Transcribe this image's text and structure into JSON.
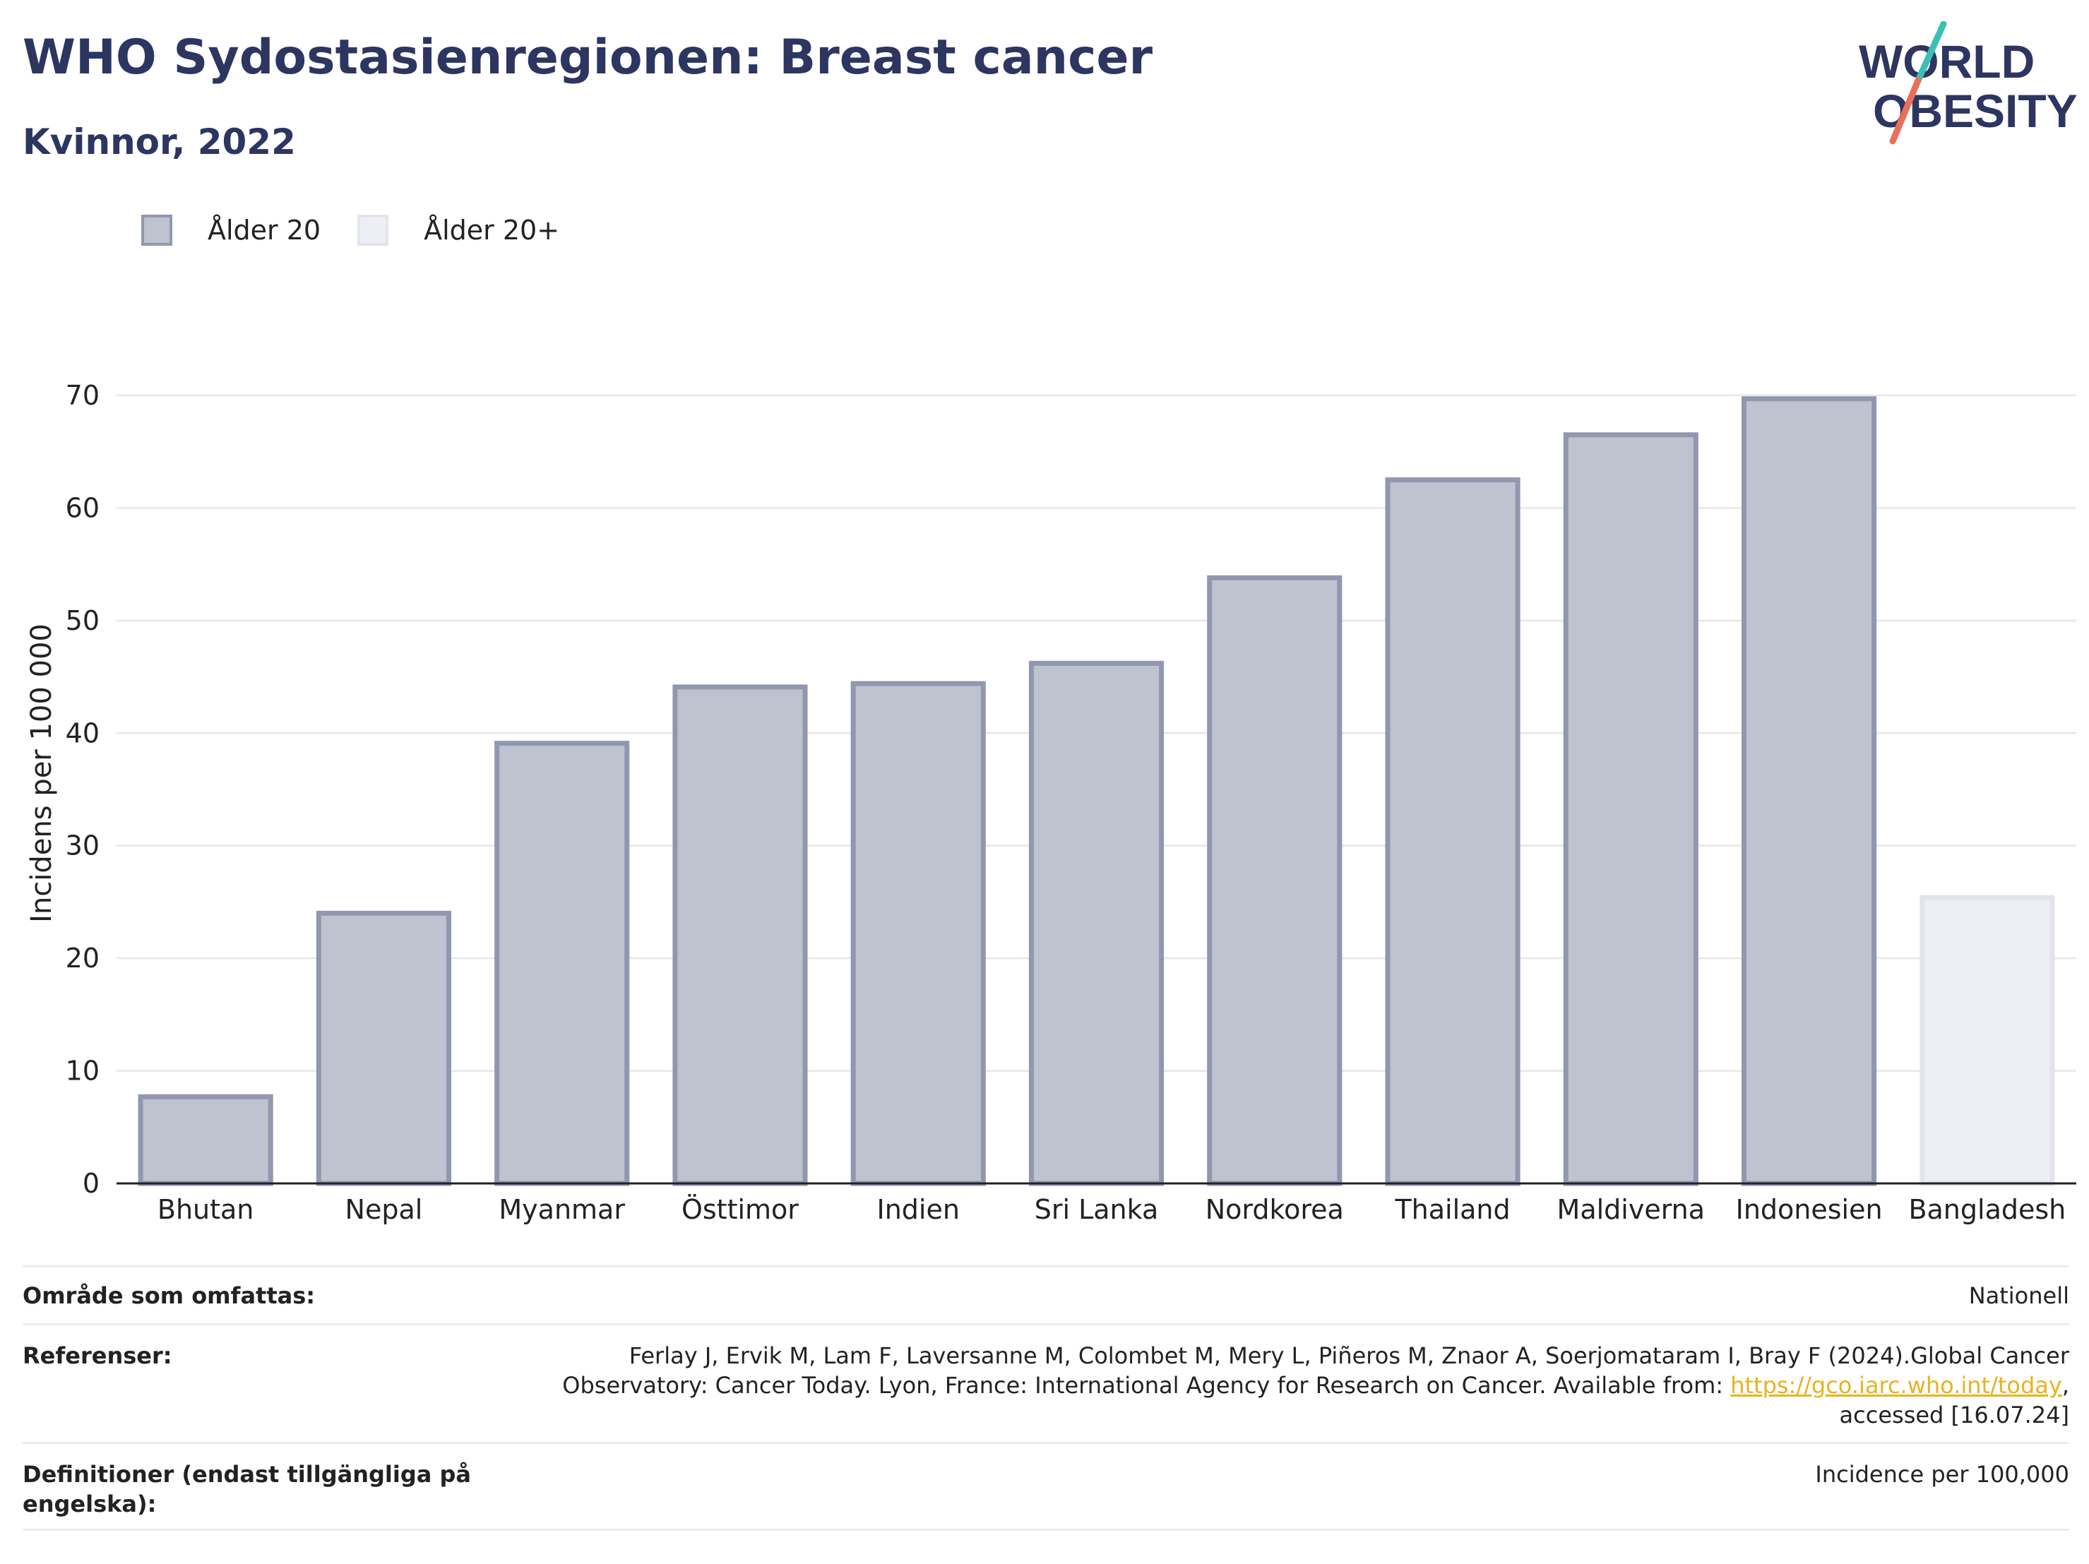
{
  "header": {
    "title": "WHO Sydostasienregionen: Breast cancer",
    "subtitle": "Kvinnor, 2022"
  },
  "logo": {
    "line1": "WORLD",
    "line2": "OBESITY",
    "colors": {
      "text": "#2d3561",
      "slash_top": "#3cbfb4",
      "slash_bottom": "#e8705a"
    }
  },
  "legend": [
    {
      "label": "Ålder 20",
      "color": "#bfc2cf"
    },
    {
      "label": "Ålder 20+",
      "color": "#eeeff4"
    }
  ],
  "chart_data": {
    "type": "bar",
    "title": "",
    "xlabel": "",
    "ylabel": "Incidens per 100 000",
    "ylim": [
      0,
      70
    ],
    "yticks": [
      0,
      10,
      20,
      30,
      40,
      50,
      60,
      70
    ],
    "grid": true,
    "legend_position": "top-left",
    "categories": [
      "Bhutan",
      "Nepal",
      "Myanmar",
      "Östtimor",
      "Indien",
      "Sri Lanka",
      "Nordkorea",
      "Thailand",
      "Maldiverna",
      "Indonesien",
      "Bangladesh"
    ],
    "series": [
      {
        "name": "Ålder 20",
        "values": [
          7.7,
          24.0,
          39.1,
          44.1,
          44.4,
          46.2,
          53.8,
          62.5,
          66.5,
          69.7,
          null
        ]
      },
      {
        "name": "Ålder 20+",
        "values": [
          null,
          null,
          null,
          null,
          null,
          null,
          null,
          null,
          null,
          null,
          25.4
        ]
      }
    ],
    "colors": {
      "series1_fill": "#bfc2cf",
      "series1_stroke": "#9297b0",
      "series2_fill": "#eeeff4",
      "series2_stroke": "#e2e4ec",
      "grid": "#e9e9ee",
      "axis": "#222222"
    }
  },
  "info": {
    "rows": [
      {
        "label": "Område som omfattas:",
        "value": "Nationell"
      },
      {
        "label": "Referenser:",
        "value_before": "Ferlay J, Ervik M, Lam F, Laversanne M, Colombet M, Mery L, Piñeros M, Znaor A, Soerjomataram I, Bray F (2024).Global Cancer Observatory: Cancer Today. Lyon, France: International Agency for Research on Cancer. Available from:",
        "link": "https://gco.iarc.who.int/today",
        "value_after": ", accessed [16.07.24]"
      },
      {
        "label": "Definitioner (endast tillgängliga på engelska):",
        "value": "Incidence per 100,000"
      }
    ]
  }
}
